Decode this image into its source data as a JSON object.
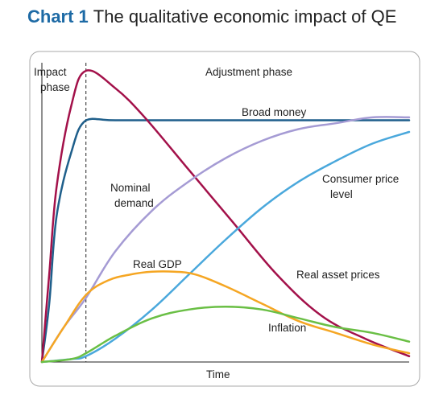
{
  "header": {
    "chart_number": "Chart 1",
    "title": "The qualitative economic impact of QE"
  },
  "chart_data": {
    "type": "line",
    "title": "The qualitative economic impact of QE",
    "xlabel": "Time",
    "ylabel": "",
    "xlim": [
      0,
      100
    ],
    "ylim": [
      0,
      100
    ],
    "grid": false,
    "axis_ticks": false,
    "phases": [
      {
        "name": "Impact phase",
        "start": 0,
        "end": 12
      },
      {
        "name": "Adjustment phase",
        "start": 12,
        "end": 100
      }
    ],
    "phase_divider_x": 12,
    "series": [
      {
        "name": "Broad money",
        "color": "#1f5f8b",
        "x": [
          0,
          2,
          4,
          8,
          12,
          20,
          40,
          60,
          80,
          100
        ],
        "y": [
          0,
          20,
          50,
          72,
          83,
          83,
          83,
          83,
          83,
          83
        ]
      },
      {
        "name": "Real asset prices",
        "color": "#a3114a",
        "x": [
          0,
          2,
          4,
          8,
          12,
          20,
          28,
          40,
          52,
          64,
          76,
          88,
          100
        ],
        "y": [
          0,
          30,
          60,
          88,
          100,
          94,
          84,
          66,
          48,
          30,
          16,
          8,
          2
        ]
      },
      {
        "name": "Nominal demand",
        "color": "#a59bd4",
        "x": [
          0,
          6,
          12,
          20,
          30,
          40,
          50,
          60,
          70,
          80,
          90,
          100
        ],
        "y": [
          0,
          12,
          22,
          38,
          52,
          62,
          70,
          76,
          80,
          82,
          84,
          84
        ]
      },
      {
        "name": "Consumer price level",
        "color": "#4aa8dc",
        "x": [
          0,
          8,
          12,
          20,
          30,
          40,
          50,
          60,
          70,
          80,
          90,
          100
        ],
        "y": [
          0,
          1,
          2,
          8,
          18,
          30,
          42,
          53,
          62,
          69,
          75,
          79
        ]
      },
      {
        "name": "Real GDP",
        "color": "#f5a623",
        "x": [
          0,
          6,
          12,
          18,
          24,
          30,
          36,
          42,
          50,
          60,
          70,
          80,
          90,
          100
        ],
        "y": [
          0,
          12,
          23,
          28,
          30,
          31,
          31,
          30,
          26,
          20,
          14,
          10,
          6,
          3
        ]
      },
      {
        "name": "Inflation",
        "color": "#6abf45",
        "x": [
          0,
          8,
          12,
          20,
          30,
          40,
          50,
          60,
          70,
          80,
          90,
          100
        ],
        "y": [
          0,
          1,
          3,
          9,
          15,
          18,
          19,
          18,
          15,
          12,
          10,
          7
        ]
      }
    ],
    "annotations": [
      {
        "text": "Impact",
        "series": null
      },
      {
        "text": "phase",
        "series": null
      },
      {
        "text": "Adjustment phase",
        "series": null
      },
      {
        "text": "Broad money",
        "series": "Broad money"
      },
      {
        "text": "Nominal",
        "series": "Nominal demand"
      },
      {
        "text": "demand",
        "series": "Nominal demand"
      },
      {
        "text": "Consumer price",
        "series": "Consumer price level"
      },
      {
        "text": "level",
        "series": "Consumer price level"
      },
      {
        "text": "Real GDP",
        "series": "Real GDP"
      },
      {
        "text": "Real asset prices",
        "series": "Real asset prices"
      },
      {
        "text": "Inflation",
        "series": "Inflation"
      },
      {
        "text": "Time",
        "series": null
      }
    ]
  }
}
